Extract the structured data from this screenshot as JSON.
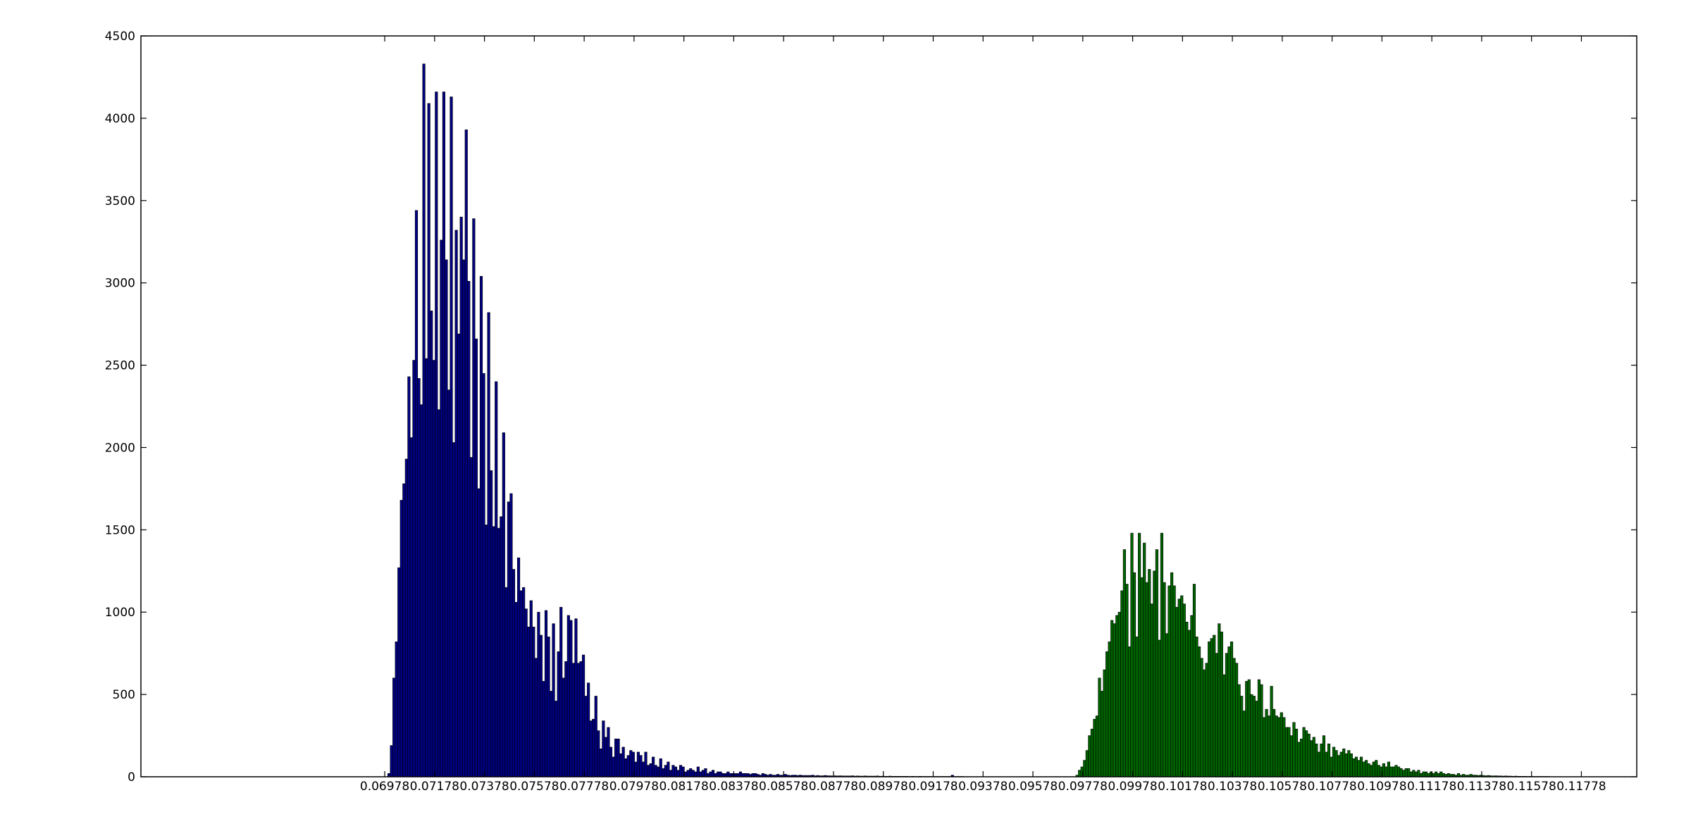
{
  "chart_data": {
    "type": "bar",
    "title": "",
    "xlabel": "",
    "ylabel": "",
    "grid": false,
    "legend": "none",
    "xlim": [
      0.06,
      0.12
    ],
    "ylim": [
      0,
      4500
    ],
    "bin_width": 0.0001,
    "y_ticks": [
      0,
      500,
      1000,
      1500,
      2000,
      2500,
      3000,
      3500,
      4000,
      4500
    ],
    "x_ticks": [
      0.06978,
      0.07178,
      0.07378,
      0.07578,
      0.07778,
      0.07978,
      0.08178,
      0.08378,
      0.08578,
      0.08778,
      0.08978,
      0.09178,
      0.09378,
      0.09578,
      0.09778,
      0.09978,
      0.10178,
      0.10378,
      0.10578,
      0.10778,
      0.10978,
      0.11178,
      0.11378,
      0.11578,
      0.11778
    ],
    "x_tick_labels": [
      "0.06978",
      "0.07178",
      "0.07378",
      "0.07578",
      "0.07778",
      "0.07978",
      "0.08178",
      "0.08378",
      "0.08578",
      "0.08778",
      "0.08978",
      "0.09178",
      "0.09378",
      "0.09578",
      "0.09778",
      "0.09978",
      "0.10178",
      "0.10378",
      "0.10578",
      "0.10778",
      "0.10978",
      "0.11178",
      "0.11378",
      "0.11578",
      "0.11778"
    ],
    "series": [
      {
        "color": "#000080",
        "x_start": 0.0699,
        "values": [
          20,
          190,
          600,
          820,
          1270,
          1680,
          1780,
          1930,
          2430,
          2060,
          2530,
          3440,
          2420,
          2260,
          4330,
          2540,
          4090,
          2830,
          2530,
          4160,
          2230,
          3260,
          4160,
          3140,
          2350,
          4130,
          2030,
          3320,
          2690,
          3400,
          3140,
          3930,
          3010,
          1940,
          3390,
          2660,
          1750,
          3040,
          2450,
          1530,
          2820,
          1860,
          1520,
          2400,
          1510,
          1580,
          2090,
          1150,
          1670,
          1720,
          1260,
          1060,
          1330,
          1130,
          1150,
          1020,
          910,
          1070,
          910,
          720,
          1000,
          860,
          580,
          1010,
          850,
          520,
          930,
          460,
          760,
          1030,
          600,
          700,
          980,
          950,
          690,
          960,
          690,
          700,
          740,
          490,
          570,
          340,
          350,
          490,
          280,
          170,
          340,
          240,
          300,
          180,
          120,
          230,
          230,
          140,
          180,
          110,
          130,
          160,
          150,
          90,
          150,
          130,
          90,
          150,
          70,
          80,
          120,
          70,
          60,
          110,
          50,
          70,
          90,
          40,
          70,
          60,
          40,
          70,
          60,
          30,
          40,
          50,
          40,
          30,
          60,
          30,
          40,
          50,
          20,
          30,
          40,
          20,
          30,
          30,
          20,
          20,
          30,
          20,
          20,
          20,
          20,
          30,
          20,
          20,
          20,
          15,
          20,
          20,
          15,
          10,
          20,
          15,
          10,
          15,
          10,
          10,
          15,
          10,
          10,
          15,
          10,
          8,
          10,
          10,
          8,
          10,
          8,
          8,
          8,
          8,
          10,
          6,
          8,
          6,
          6,
          8,
          6,
          6,
          5,
          6,
          5,
          6,
          5,
          5,
          5,
          5,
          6,
          4,
          5,
          4,
          4,
          5,
          4,
          4,
          4,
          4,
          5,
          3,
          4,
          3,
          3,
          4,
          3,
          3,
          3,
          3,
          3,
          3,
          3,
          2,
          3,
          2,
          2,
          3,
          2,
          2,
          2,
          2,
          2,
          2,
          2,
          2,
          2,
          2,
          2,
          2,
          10,
          2,
          2,
          2,
          2
        ]
      },
      {
        "color": "#006400",
        "x_start": 0.0975,
        "values": [
          10,
          40,
          60,
          100,
          160,
          250,
          290,
          350,
          370,
          600,
          520,
          650,
          760,
          820,
          950,
          930,
          980,
          1000,
          1130,
          1380,
          1170,
          790,
          1480,
          1240,
          850,
          1480,
          1210,
          1420,
          1180,
          1260,
          1050,
          1250,
          1380,
          830,
          1480,
          1180,
          870,
          1160,
          1240,
          1160,
          1030,
          1080,
          1100,
          1050,
          940,
          890,
          980,
          1170,
          850,
          790,
          720,
          650,
          690,
          820,
          840,
          860,
          750,
          930,
          880,
          620,
          750,
          790,
          820,
          720,
          690,
          560,
          490,
          400,
          580,
          590,
          500,
          490,
          460,
          590,
          560,
          360,
          410,
          370,
          550,
          410,
          370,
          360,
          390,
          360,
          300,
          300,
          250,
          330,
          290,
          210,
          230,
          300,
          280,
          260,
          220,
          240,
          200,
          150,
          200,
          250,
          150,
          200,
          120,
          180,
          160,
          130,
          150,
          170,
          140,
          160,
          140,
          110,
          120,
          100,
          120,
          90,
          100,
          80,
          70,
          90,
          100,
          70,
          60,
          80,
          60,
          90,
          60,
          60,
          70,
          60,
          50,
          40,
          50,
          50,
          30,
          40,
          30,
          40,
          20,
          30,
          30,
          20,
          30,
          20,
          30,
          20,
          30,
          20,
          15,
          20,
          15,
          15,
          10,
          20,
          10,
          15,
          10,
          10,
          15,
          10,
          10,
          8,
          10,
          8,
          6,
          8,
          6,
          5,
          6,
          5,
          5,
          4,
          5,
          4,
          4,
          3,
          4,
          3,
          3,
          3,
          3,
          2,
          3,
          2,
          2,
          2,
          2,
          2,
          2,
          2
        ]
      }
    ]
  }
}
